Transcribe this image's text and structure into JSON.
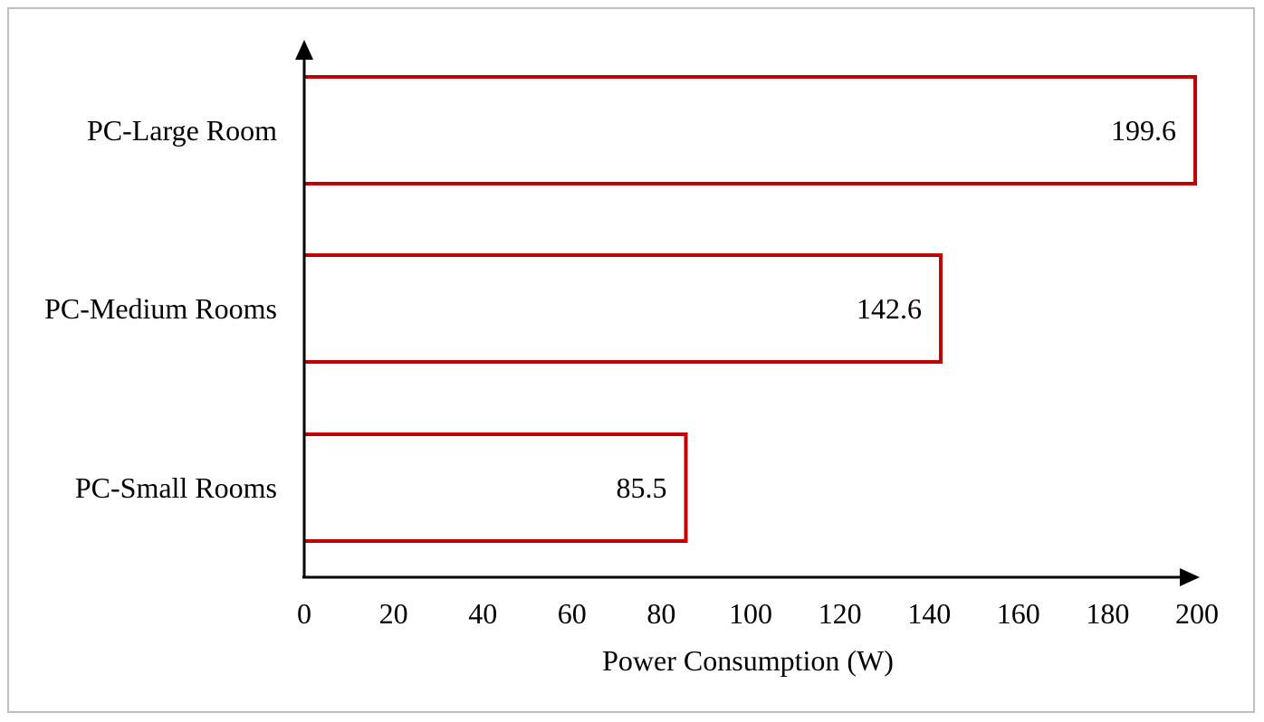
{
  "chart_data": {
    "type": "bar",
    "orientation": "horizontal",
    "categories": [
      "PC-Large Room",
      "PC-Medium Rooms",
      "PC-Small Rooms"
    ],
    "values": [
      199.6,
      142.6,
      85.5
    ],
    "data_labels": [
      "199.6",
      "142.6",
      "85.5"
    ],
    "xlabel": "Power Consumption (W)",
    "ylabel": "",
    "title": "",
    "xlim": [
      0,
      200
    ],
    "xticks": [
      "0",
      "20",
      "40",
      "60",
      "80",
      "100",
      "120",
      "140",
      "160",
      "180",
      "200"
    ],
    "grid": false,
    "legend": "none",
    "colors": {
      "bar_outline": "#c00000",
      "bar_fill": "#ffffff",
      "axis": "#000000",
      "frame": "#bfbfbf"
    }
  }
}
